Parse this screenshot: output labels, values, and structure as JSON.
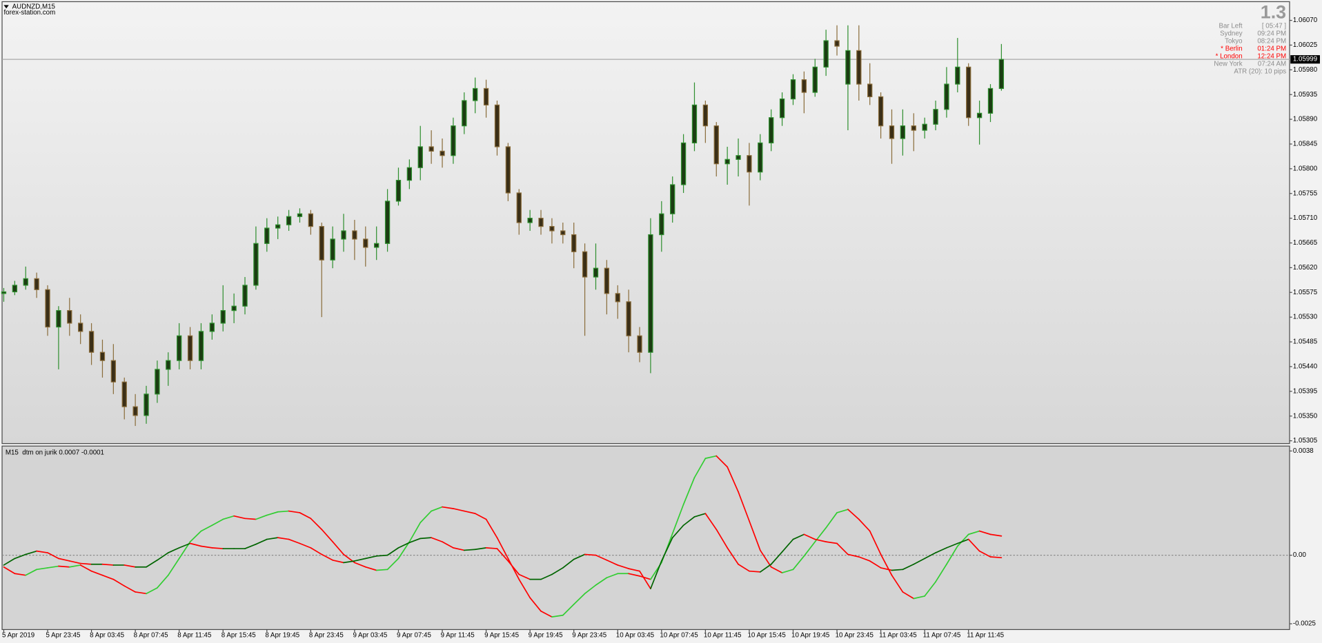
{
  "chart_data": [
    {
      "type": "candlestick",
      "title": "AUDNZD,M15",
      "subtitle": "forex-station.com",
      "up_color": "#2f8f2f",
      "down_color": "#8a6d3b",
      "current_price": 1.05999,
      "current_price_color": "#a8a8a8",
      "ylim": [
        1.053,
        1.06104
      ],
      "yticks": [
        {
          "value": 1.0607,
          "label": "1.06070"
        },
        1.06025,
        {
          "value": 1.0598,
          "label": "1.05980"
        },
        1.05935,
        {
          "value": 1.0589,
          "label": "1.05890"
        },
        1.05845,
        {
          "value": 1.058,
          "label": "1.05800"
        },
        1.05755,
        {
          "value": 1.0571,
          "label": "1.05710"
        },
        1.05665,
        {
          "value": 1.0562,
          "label": "1.05620"
        },
        1.05575,
        {
          "value": 1.0553,
          "label": "1.05530"
        },
        1.05485,
        {
          "value": 1.0544,
          "label": "1.05440"
        },
        1.05395,
        {
          "value": 1.0535,
          "label": "1.05350"
        },
        1.05305
      ],
      "open": [
        1.05573,
        1.05576,
        1.05588,
        1.056,
        1.0558,
        1.05512,
        1.05542,
        1.05519,
        1.05504,
        1.05466,
        1.05451,
        1.05412,
        1.05367,
        1.05351,
        1.0539,
        1.05435,
        1.05451,
        1.05496,
        1.05451,
        1.05504,
        1.05519,
        1.05542,
        1.0555,
        1.05588,
        1.05664,
        1.05692,
        1.05698,
        1.05713,
        1.05718,
        1.05695,
        1.05634,
        1.05672,
        1.05687,
        1.05672,
        1.05657,
        1.05664,
        1.05741,
        1.05779,
        1.05802,
        1.0584,
        1.05832,
        1.05824,
        1.05878,
        1.05924,
        1.05946,
        1.05916,
        1.0584,
        1.05756,
        1.05702,
        1.0571,
        1.05695,
        1.05687,
        1.0568,
        1.05649,
        1.05603,
        1.05619,
        1.05573,
        1.05558,
        1.05496,
        1.05466,
        1.0568,
        1.05718,
        1.05771,
        1.05847,
        1.05916,
        1.05878,
        1.05809,
        1.05817,
        1.05824,
        1.05794,
        1.05847,
        1.05893,
        1.05927,
        1.05962,
        1.05939,
        1.05985,
        1.06033,
        1.05954,
        1.06015,
        1.05954,
        1.05931,
        1.05878,
        1.05855,
        1.05878,
        1.0587,
        1.05881,
        1.05908,
        1.05954,
        1.05985,
        1.05893,
        1.05901,
        1.05946
      ],
      "high": [
        1.05583,
        1.05596,
        1.05622,
        1.05611,
        1.05588,
        1.0555,
        1.05565,
        1.05535,
        1.05519,
        1.05489,
        1.05481,
        1.0542,
        1.0539,
        1.05405,
        1.05451,
        1.05466,
        1.05519,
        1.05512,
        1.05519,
        1.05535,
        1.05588,
        1.05573,
        1.05603,
        1.05695,
        1.0571,
        1.05713,
        1.05725,
        1.05728,
        1.05725,
        1.05702,
        1.05695,
        1.05718,
        1.05707,
        1.05695,
        1.05695,
        1.05763,
        1.05802,
        1.05817,
        1.05878,
        1.0587,
        1.05855,
        1.05893,
        1.05939,
        1.05966,
        1.05962,
        1.05924,
        1.05847,
        1.05763,
        1.05725,
        1.05725,
        1.0571,
        1.05702,
        1.05702,
        1.05664,
        1.05664,
        1.05634,
        1.05588,
        1.0558,
        1.05512,
        1.0571,
        1.05741,
        1.05786,
        1.05863,
        1.05957,
        1.05924,
        1.05885,
        1.0584,
        1.05855,
        1.05847,
        1.05863,
        1.05908,
        1.05939,
        1.05972,
        1.05977,
        1.06,
        1.06053,
        1.06061,
        1.06061,
        1.06061,
        1.05992,
        1.05939,
        1.05908,
        1.05908,
        1.05901,
        1.05893,
        1.05924,
        1.05985,
        1.06038,
        1.05992,
        1.05924,
        1.05954,
        1.06027
      ],
      "low": [
        1.05558,
        1.0557,
        1.0558,
        1.05565,
        1.05496,
        1.05435,
        1.05496,
        1.05481,
        1.05443,
        1.0542,
        1.0539,
        1.05344,
        1.05332,
        1.05336,
        1.05374,
        1.05405,
        1.05435,
        1.05435,
        1.05435,
        1.05489,
        1.05504,
        1.05519,
        1.05535,
        1.0558,
        1.05649,
        1.05672,
        1.05687,
        1.05702,
        1.0568,
        1.0553,
        1.05619,
        1.05649,
        1.05634,
        1.05622,
        1.05634,
        1.05649,
        1.05733,
        1.05763,
        1.05779,
        1.05809,
        1.05802,
        1.05809,
        1.05863,
        1.05901,
        1.05893,
        1.05824,
        1.05741,
        1.0568,
        1.05687,
        1.0568,
        1.05664,
        1.05664,
        1.05619,
        1.05496,
        1.0558,
        1.05535,
        1.05527,
        1.05466,
        1.05448,
        1.05428,
        1.05649,
        1.05702,
        1.05756,
        1.05832,
        1.05847,
        1.05786,
        1.05771,
        1.05786,
        1.05733,
        1.05779,
        1.05832,
        1.05878,
        1.05916,
        1.05901,
        1.05931,
        1.05969,
        1.06006,
        1.0587,
        1.05924,
        1.05916,
        1.05855,
        1.05809,
        1.05824,
        1.05832,
        1.05855,
        1.0587,
        1.05893,
        1.05939,
        1.05878,
        1.05844,
        1.05885,
        1.05942
      ],
      "close": [
        1.05576,
        1.05588,
        1.056,
        1.0558,
        1.05512,
        1.05542,
        1.05519,
        1.05504,
        1.05466,
        1.05451,
        1.05412,
        1.05367,
        1.05351,
        1.0539,
        1.05435,
        1.05451,
        1.05496,
        1.05451,
        1.05504,
        1.05519,
        1.05542,
        1.0555,
        1.05588,
        1.05664,
        1.05692,
        1.05698,
        1.05713,
        1.05718,
        1.05695,
        1.05634,
        1.05672,
        1.05687,
        1.05672,
        1.05657,
        1.05664,
        1.05741,
        1.05779,
        1.05802,
        1.0584,
        1.05832,
        1.05824,
        1.05878,
        1.05924,
        1.05946,
        1.05916,
        1.0584,
        1.05756,
        1.05702,
        1.0571,
        1.05695,
        1.05687,
        1.0568,
        1.05649,
        1.05603,
        1.05619,
        1.05573,
        1.05558,
        1.05496,
        1.05466,
        1.0568,
        1.05718,
        1.05771,
        1.05847,
        1.05916,
        1.05878,
        1.05809,
        1.05817,
        1.05824,
        1.05794,
        1.05847,
        1.05893,
        1.05927,
        1.05962,
        1.05939,
        1.05985,
        1.06033,
        1.06023,
        1.06015,
        1.05954,
        1.05931,
        1.05878,
        1.05855,
        1.05878,
        1.0587,
        1.05881,
        1.05908,
        1.05954,
        1.05985,
        1.05893,
        1.05901,
        1.05946,
        1.05999
      ],
      "info": {
        "version": "1.3",
        "rows": [
          {
            "label": "Bar Left",
            "value": "[ 05:47 ]",
            "color": "#8c8c8c"
          },
          {
            "label": "Sydney",
            "value": "09:24 PM",
            "color": "#8c8c8c"
          },
          {
            "label": "Tokyo",
            "value": "08:24 PM",
            "color": "#8c8c8c"
          },
          {
            "label": "* Berlin",
            "value": "01:24 PM",
            "color": "#ff0000"
          },
          {
            "label": "* London",
            "value": "12:24 PM",
            "color": "#ff0000"
          },
          {
            "label": "New York",
            "value": "07:24 AM",
            "color": "#8c8c8c"
          },
          {
            "value": "ATR (20): 10 pips",
            "color": "#8c8c8c"
          }
        ]
      }
    },
    {
      "type": "line",
      "title": "M15  dtm on jurik 0.0007 -0.0001",
      "categories": [
        "5 Apr 2019",
        null,
        null,
        null,
        "5 Apr 23:45",
        null,
        null,
        null,
        "8 Apr 03:45",
        null,
        null,
        null,
        "8 Apr 07:45",
        null,
        null,
        null,
        "8 Apr 11:45",
        null,
        null,
        null,
        "8 Apr 15:45",
        null,
        null,
        null,
        "8 Apr 19:45",
        null,
        null,
        null,
        "8 Apr 23:45",
        null,
        null,
        null,
        "9 Apr 03:45",
        null,
        null,
        null,
        "9 Apr 07:45",
        null,
        null,
        null,
        "9 Apr 11:45",
        null,
        null,
        null,
        "9 Apr 15:45",
        null,
        null,
        null,
        "9 Apr 19:45",
        null,
        null,
        null,
        "9 Apr 23:45",
        null,
        null,
        null,
        "10 Apr 03:45",
        null,
        null,
        null,
        "10 Apr 07:45",
        null,
        null,
        null,
        "10 Apr 11:45",
        null,
        null,
        null,
        "10 Apr 15:45",
        null,
        null,
        null,
        "10 Apr 19:45",
        null,
        null,
        null,
        "10 Apr 23:45",
        null,
        null,
        null,
        "11 Apr 03:45",
        null,
        null,
        null,
        "11 Apr 07:45",
        null,
        null,
        null,
        "11 Apr 11:45",
        null,
        null,
        null
      ],
      "ylim": [
        -0.00271,
        0.00398
      ],
      "yticks": [
        0.0038,
        {
          "value": 0,
          "label": "0.00"
        },
        -0.0025
      ],
      "levels": [
        0
      ],
      "series": [
        {
          "up_color": "#32cd32",
          "down_color": "#ff0000",
          "values": [
            -0.00043,
            -0.00067,
            -0.00073,
            -0.00052,
            -0.00046,
            -0.0004,
            -0.00043,
            -0.00036,
            -0.00058,
            -0.00073,
            -0.00088,
            -0.00112,
            -0.00134,
            -0.0014,
            -0.00119,
            -0.00073,
            -0.00012,
            0.00049,
            0.00088,
            0.00109,
            0.00131,
            0.00143,
            0.00134,
            0.00131,
            0.00146,
            0.00158,
            0.00161,
            0.00155,
            0.00134,
            0.00094,
            0.00049,
            3e-05,
            -0.00027,
            -0.00043,
            -0.00055,
            -0.00052,
            -0.00012,
            0.00049,
            0.00119,
            0.00161,
            0.00176,
            0.0017,
            0.00161,
            0.00152,
            0.00131,
            0.00064,
            -0.00012,
            -0.00088,
            -0.00155,
            -0.00204,
            -0.00225,
            -0.00219,
            -0.00179,
            -0.0014,
            -0.00109,
            -0.00082,
            -0.00067,
            -0.00067,
            -0.00076,
            -0.00088,
            -0.00027,
            0.00079,
            0.00185,
            0.00283,
            0.00353,
            0.00362,
            0.00322,
            0.00231,
            0.00125,
            0.00018,
            -0.00043,
            -0.00064,
            -0.00052,
            -3e-05,
            0.00049,
            0.001,
            0.00155,
            0.00167,
            0.00131,
            0.00088,
            3e-05,
            -0.00073,
            -0.00134,
            -0.00158,
            -0.00149,
            -0.00097,
            -0.00033,
            0.00033,
            0.00076,
            0.00088,
            0.00076,
            0.0007
          ]
        },
        {
          "up_color": "#006400",
          "down_color": "#ff0000",
          "values": [
            -0.00036,
            -0.00012,
            3e-05,
            0.00015,
            9e-05,
            -0.00012,
            -0.00021,
            -0.0003,
            -0.00033,
            -0.00033,
            -0.00036,
            -0.00036,
            -0.00043,
            -0.00043,
            -0.00018,
            9e-05,
            0.00027,
            0.00043,
            0.00033,
            0.00027,
            0.00024,
            0.00024,
            0.00024,
            0.0004,
            0.00058,
            0.00064,
            0.00058,
            0.00043,
            0.00027,
            3e-05,
            -0.00018,
            -0.00027,
            -0.00021,
            -0.00012,
            -3e-05,
            0,
            0.00027,
            0.00046,
            0.00061,
            0.00064,
            0.00049,
            0.00027,
            0.00018,
            0.00021,
            0.00027,
            0.00024,
            -0.00021,
            -0.0007,
            -0.00088,
            -0.00088,
            -0.0007,
            -0.00046,
            -0.00015,
            3e-05,
            0,
            -0.00018,
            -0.00036,
            -0.00049,
            -0.00058,
            -0.00122,
            -0.00021,
            0.00064,
            0.00109,
            0.0014,
            0.00152,
            0.00094,
            0.00027,
            -0.00033,
            -0.00058,
            -0.00061,
            -0.00033,
            0.00012,
            0.00058,
            0.00076,
            0.00058,
            0.00049,
            0.00043,
            3e-05,
            -6e-05,
            -0.00021,
            -0.00046,
            -0.00055,
            -0.00052,
            -0.00033,
            -0.00012,
            9e-05,
            0.00027,
            0.00043,
            0.00058,
            0.00015,
            -6e-05,
            -9e-05
          ]
        }
      ]
    }
  ]
}
